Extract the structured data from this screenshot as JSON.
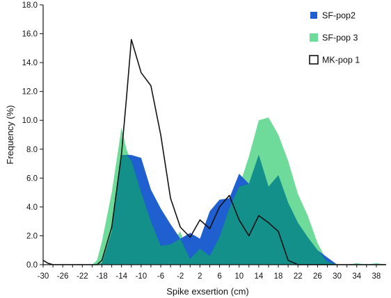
{
  "chart_data": {
    "type": "area",
    "xlabel": "Spike exsertion (cm)",
    "ylabel": "Frequency (%)",
    "xlim": [
      -30,
      40
    ],
    "ylim": [
      0,
      18
    ],
    "x_ticks": [
      -30,
      -26,
      -22,
      -18,
      -14,
      -10,
      -6,
      -2,
      2,
      6,
      10,
      14,
      18,
      22,
      26,
      30,
      34,
      38
    ],
    "x_tick_labels": [
      "-30",
      "-26",
      "-22",
      "-18",
      "-14",
      "-10",
      "-6",
      "-2",
      "2",
      "6",
      "10",
      "14",
      "18",
      "22",
      "26",
      "30",
      "34",
      "38"
    ],
    "y_ticks": [
      0,
      2,
      4,
      6,
      8,
      10,
      12,
      14,
      16,
      18
    ],
    "y_tick_labels": [
      "0.0",
      "2.0",
      "4.0",
      "6.0",
      "8.0",
      "10.0",
      "12.0",
      "14.0",
      "16.0",
      "18.0"
    ],
    "grid": false,
    "legend_position": "top-right",
    "series": [
      {
        "name": "SF-pop2",
        "style": "area",
        "color": "#1f5fd0",
        "x": [
          -30,
          -20,
          -19,
          -18,
          -16,
          -14,
          -13,
          -12,
          -10,
          -8,
          -6,
          -4,
          -2,
          0,
          2,
          4,
          6,
          8,
          10,
          12,
          14,
          16,
          18,
          20,
          22,
          24,
          26,
          28,
          30,
          32,
          34,
          36,
          38,
          40
        ],
        "y": [
          0,
          0,
          0,
          0.1,
          2.3,
          7.6,
          7.6,
          7.6,
          7.4,
          5.2,
          3.9,
          2.8,
          1.8,
          2.2,
          1.8,
          3.7,
          4.5,
          4.6,
          6.3,
          5.6,
          7.6,
          5.4,
          6.2,
          4.3,
          2.9,
          1.9,
          1.0,
          0.5,
          0,
          0,
          0,
          0,
          0,
          0
        ]
      },
      {
        "name": "SF-pop 3",
        "style": "area",
        "color": "#6fdb9b",
        "x": [
          -30,
          -20,
          -19,
          -18,
          -16,
          -14,
          -13,
          -12,
          -10,
          -8,
          -6,
          -4,
          -2,
          0,
          2,
          4,
          6,
          8,
          10,
          12,
          14,
          16,
          18,
          20,
          22,
          24,
          26,
          28,
          30,
          32,
          34,
          36,
          38,
          40
        ],
        "y": [
          0,
          0,
          0.3,
          1.6,
          5.0,
          9.5,
          8.0,
          7.2,
          5.0,
          3.0,
          1.3,
          1.4,
          2.3,
          0.4,
          1.1,
          0.6,
          1.9,
          3.9,
          5.4,
          7.5,
          10.0,
          10.2,
          9.0,
          7.2,
          4.9,
          3.4,
          1.5,
          0.2,
          0,
          0,
          0.1,
          0,
          0.1,
          0
        ]
      },
      {
        "name": "MK-pop 1",
        "style": "line",
        "color": "#111111",
        "x": [
          -30,
          -29,
          -28,
          -26,
          -24,
          -22,
          -20,
          -19,
          -18,
          -16,
          -14,
          -13,
          -12,
          -10,
          -8,
          -6,
          -4,
          -2,
          0,
          2,
          4,
          6,
          8,
          10,
          12,
          14,
          16,
          18,
          20,
          22,
          24,
          26,
          28,
          30,
          32,
          34,
          36,
          38,
          40
        ],
        "y": [
          0.3,
          0.1,
          0,
          0,
          0,
          0,
          0,
          0,
          0.3,
          2.6,
          7.7,
          11.5,
          15.6,
          13.3,
          12.4,
          9.0,
          4.6,
          2.6,
          1.9,
          3.1,
          2.5,
          4.0,
          4.8,
          3.1,
          2.0,
          3.4,
          2.9,
          2.3,
          0.3,
          0,
          0,
          0,
          0,
          0,
          0,
          0,
          0,
          0,
          0
        ]
      }
    ]
  },
  "colors": {
    "teal_overlap": "#13908a",
    "axis": "#111111"
  }
}
